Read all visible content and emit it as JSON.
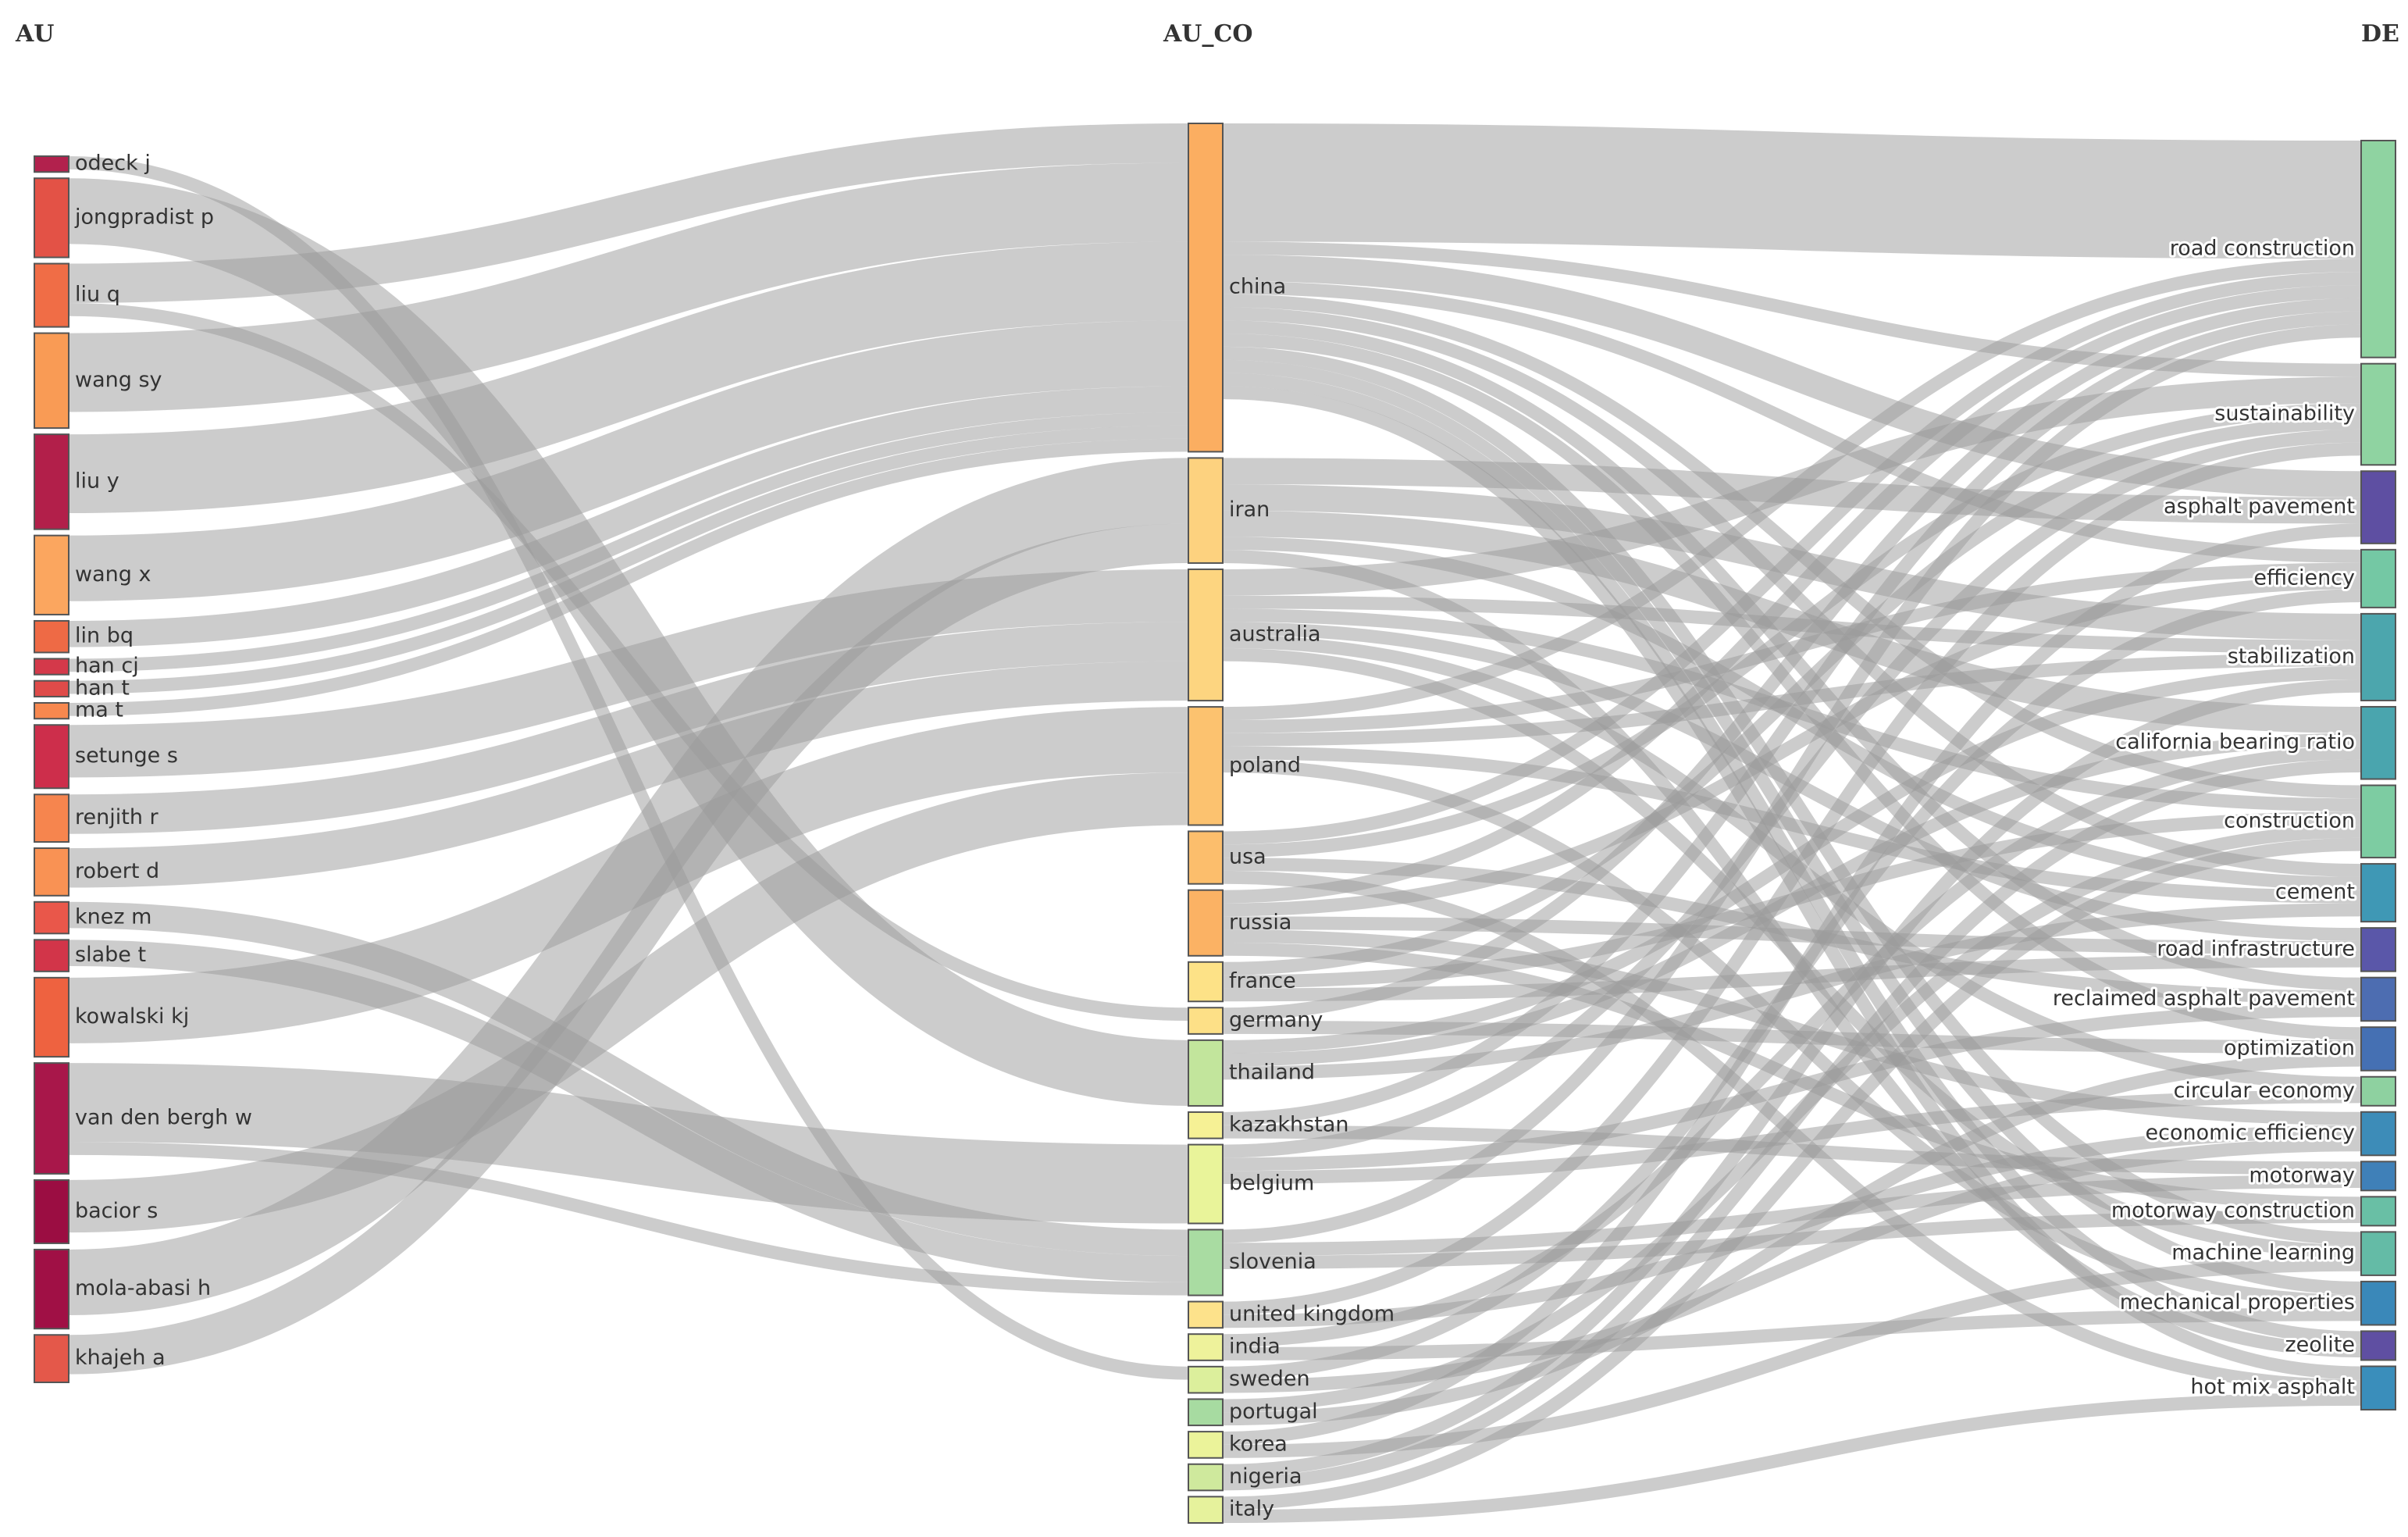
{
  "headers": {
    "au": "AU",
    "au_co": "AU_CO",
    "de": "DE"
  },
  "colors": {
    "link": "#9a9a9a"
  },
  "au_nodes": [
    {
      "id": "odeck j",
      "label": "odeck j",
      "color": "#b2214d"
    },
    {
      "id": "jongpradist p",
      "label": "jongpradist p",
      "color": "#e35246"
    },
    {
      "id": "liu q",
      "label": "liu q",
      "color": "#f06d46"
    },
    {
      "id": "wang sy",
      "label": "wang sy",
      "color": "#f99b55"
    },
    {
      "id": "liu y",
      "label": "liu y",
      "color": "#b21f4a"
    },
    {
      "id": "wang x",
      "label": "wang x",
      "color": "#fba65f"
    },
    {
      "id": "lin bq",
      "label": "lin bq",
      "color": "#ee6a45"
    },
    {
      "id": "han cj",
      "label": "han cj",
      "color": "#d4394a"
    },
    {
      "id": "han t",
      "label": "han t",
      "color": "#df4b49"
    },
    {
      "id": "ma t",
      "label": "ma t",
      "color": "#f7884f"
    },
    {
      "id": "setunge s",
      "label": "setunge s",
      "color": "#cd2e4b"
    },
    {
      "id": "renjith r",
      "label": "renjith r",
      "color": "#f6854e"
    },
    {
      "id": "robert d",
      "label": "robert d",
      "color": "#f99254"
    },
    {
      "id": "knez m",
      "label": "knez m",
      "color": "#e9574a"
    },
    {
      "id": "slabe t",
      "label": "slabe t",
      "color": "#d23549"
    },
    {
      "id": "kowalski kj",
      "label": "kowalski kj",
      "color": "#ee6240"
    },
    {
      "id": "van den bergh w",
      "label": "van den bergh w",
      "color": "#a8174a"
    },
    {
      "id": "bacior s",
      "label": "bacior s",
      "color": "#9b0d42"
    },
    {
      "id": "mola-abasi h",
      "label": "mola-abasi h",
      "color": "#a01045"
    },
    {
      "id": "khajeh a",
      "label": "khajeh a",
      "color": "#e4584a"
    }
  ],
  "country_nodes": [
    {
      "id": "china",
      "label": "china",
      "color": "#fbae61"
    },
    {
      "id": "iran",
      "label": "iran",
      "color": "#fdd27f"
    },
    {
      "id": "australia",
      "label": "australia",
      "color": "#fdd580"
    },
    {
      "id": "poland",
      "label": "poland",
      "color": "#fcc26f"
    },
    {
      "id": "usa",
      "label": "usa",
      "color": "#fcbe6c"
    },
    {
      "id": "russia",
      "label": "russia",
      "color": "#fbb264"
    },
    {
      "id": "france",
      "label": "france",
      "color": "#fde287"
    },
    {
      "id": "germany",
      "label": "germany",
      "color": "#fde087"
    },
    {
      "id": "thailand",
      "label": "thailand",
      "color": "#c2e59c"
    },
    {
      "id": "kazakhstan",
      "label": "kazakhstan",
      "color": "#f6f195"
    },
    {
      "id": "belgium",
      "label": "belgium",
      "color": "#e9f49a"
    },
    {
      "id": "slovenia",
      "label": "slovenia",
      "color": "#a9dca2"
    },
    {
      "id": "united kingdom",
      "label": "united kingdom",
      "color": "#fde28b"
    },
    {
      "id": "india",
      "label": "india",
      "color": "#eef29b"
    },
    {
      "id": "sweden",
      "label": "sweden",
      "color": "#dcef9c"
    },
    {
      "id": "portugal",
      "label": "portugal",
      "color": "#a7dba1"
    },
    {
      "id": "korea",
      "label": "korea",
      "color": "#ebf39a"
    },
    {
      "id": "nigeria",
      "label": "nigeria",
      "color": "#cfe99d"
    },
    {
      "id": "italy",
      "label": "italy",
      "color": "#e6f29c"
    }
  ],
  "de_nodes": [
    {
      "id": "road construction",
      "label": "road construction",
      "color": "#8fd3a1"
    },
    {
      "id": "sustainability",
      "label": "sustainability",
      "color": "#8fd3a1"
    },
    {
      "id": "asphalt pavement",
      "label": "asphalt pavement",
      "color": "#5e4fa2"
    },
    {
      "id": "efficiency",
      "label": "efficiency",
      "color": "#74c8a4"
    },
    {
      "id": "stabilization",
      "label": "stabilization",
      "color": "#4ca6ad"
    },
    {
      "id": "california bearing ratio",
      "label": "california bearing ratio",
      "color": "#4aa5ae"
    },
    {
      "id": "construction",
      "label": "construction",
      "color": "#7dcca2"
    },
    {
      "id": "cement",
      "label": "cement",
      "color": "#3f98b5"
    },
    {
      "id": "road infrastructure",
      "label": "road infrastructure",
      "color": "#5a57a9"
    },
    {
      "id": "reclaimed asphalt pavement",
      "label": "reclaimed asphalt pavement",
      "color": "#4d6db1"
    },
    {
      "id": "optimization",
      "label": "optimization",
      "color": "#4570b3"
    },
    {
      "id": "circular economy",
      "label": "circular economy",
      "color": "#8ed1a0"
    },
    {
      "id": "economic efficiency",
      "label": "economic efficiency",
      "color": "#3d8cb8"
    },
    {
      "id": "motorway",
      "label": "motorway",
      "color": "#3f80b8"
    },
    {
      "id": "motorway construction",
      "label": "motorway construction",
      "color": "#69bfa5"
    },
    {
      "id": "machine learning",
      "label": "machine learning",
      "color": "#64bba6"
    },
    {
      "id": "mechanical properties",
      "label": "mechanical properties",
      "color": "#3a88b9"
    },
    {
      "id": "zeolite",
      "label": "zeolite",
      "color": "#5f4fa2"
    },
    {
      "id": "hot mix asphalt",
      "label": "hot mix asphalt",
      "color": "#3a8ebb"
    }
  ],
  "au_links": [
    {
      "source": "odeck j",
      "target": "sweden",
      "value": 1
    },
    {
      "source": "jongpradist p",
      "target": "thailand",
      "value": 5
    },
    {
      "source": "liu q",
      "target": "china",
      "value": 3
    },
    {
      "source": "liu q",
      "target": "germany",
      "value": 1
    },
    {
      "source": "wang sy",
      "target": "china",
      "value": 6
    },
    {
      "source": "liu y",
      "target": "china",
      "value": 6
    },
    {
      "source": "wang x",
      "target": "china",
      "value": 5
    },
    {
      "source": "lin bq",
      "target": "china",
      "value": 2
    },
    {
      "source": "han cj",
      "target": "china",
      "value": 1
    },
    {
      "source": "han t",
      "target": "china",
      "value": 1
    },
    {
      "source": "ma t",
      "target": "china",
      "value": 1
    },
    {
      "source": "setunge s",
      "target": "australia",
      "value": 4
    },
    {
      "source": "renjith r",
      "target": "australia",
      "value": 3
    },
    {
      "source": "robert d",
      "target": "australia",
      "value": 3
    },
    {
      "source": "knez m",
      "target": "slovenia",
      "value": 2
    },
    {
      "source": "slabe t",
      "target": "slovenia",
      "value": 2
    },
    {
      "source": "kowalski kj",
      "target": "poland",
      "value": 5
    },
    {
      "source": "van den bergh w",
      "target": "belgium",
      "value": 6
    },
    {
      "source": "van den bergh w",
      "target": "slovenia",
      "value": 1
    },
    {
      "source": "bacior s",
      "target": "poland",
      "value": 4
    },
    {
      "source": "mola-abasi h",
      "target": "iran",
      "value": 5
    },
    {
      "source": "khajeh a",
      "target": "iran",
      "value": 3
    }
  ],
  "de_links": [
    {
      "source": "china",
      "target": "road construction",
      "value": 9
    },
    {
      "source": "china",
      "target": "sustainability",
      "value": 1
    },
    {
      "source": "china",
      "target": "asphalt pavement",
      "value": 2
    },
    {
      "source": "china",
      "target": "efficiency",
      "value": 1
    },
    {
      "source": "china",
      "target": "construction",
      "value": 1
    },
    {
      "source": "china",
      "target": "cement",
      "value": 1
    },
    {
      "source": "china",
      "target": "reclaimed asphalt pavement",
      "value": 1
    },
    {
      "source": "china",
      "target": "optimization",
      "value": 1
    },
    {
      "source": "china",
      "target": "machine learning",
      "value": 1
    },
    {
      "source": "china",
      "target": "mechanical properties",
      "value": 1
    },
    {
      "source": "china",
      "target": "zeolite",
      "value": 1
    },
    {
      "source": "china",
      "target": "hot mix asphalt",
      "value": 1
    },
    {
      "source": "iran",
      "target": "asphalt pavement",
      "value": 2
    },
    {
      "source": "iran",
      "target": "stabilization",
      "value": 2
    },
    {
      "source": "iran",
      "target": "california bearing ratio",
      "value": 2
    },
    {
      "source": "iran",
      "target": "cement",
      "value": 1
    },
    {
      "source": "iran",
      "target": "zeolite",
      "value": 1
    },
    {
      "source": "australia",
      "target": "sustainability",
      "value": 2
    },
    {
      "source": "australia",
      "target": "stabilization",
      "value": 1
    },
    {
      "source": "australia",
      "target": "construction",
      "value": 1
    },
    {
      "source": "australia",
      "target": "road infrastructure",
      "value": 1
    },
    {
      "source": "australia",
      "target": "circular economy",
      "value": 1
    },
    {
      "source": "australia",
      "target": "machine learning",
      "value": 1
    },
    {
      "source": "poland",
      "target": "road construction",
      "value": 1
    },
    {
      "source": "poland",
      "target": "efficiency",
      "value": 1
    },
    {
      "source": "poland",
      "target": "stabilization",
      "value": 1
    },
    {
      "source": "poland",
      "target": "cement",
      "value": 1
    },
    {
      "source": "poland",
      "target": "mechanical properties",
      "value": 1
    },
    {
      "source": "usa",
      "target": "road construction",
      "value": 1
    },
    {
      "source": "usa",
      "target": "sustainability",
      "value": 1
    },
    {
      "source": "usa",
      "target": "reclaimed asphalt pavement",
      "value": 1
    },
    {
      "source": "usa",
      "target": "hot mix asphalt",
      "value": 1
    },
    {
      "source": "russia",
      "target": "road construction",
      "value": 1
    },
    {
      "source": "russia",
      "target": "efficiency",
      "value": 1
    },
    {
      "source": "russia",
      "target": "road infrastructure",
      "value": 1
    },
    {
      "source": "russia",
      "target": "economic efficiency",
      "value": 1
    },
    {
      "source": "russia",
      "target": "motorway construction",
      "value": 1
    },
    {
      "source": "france",
      "target": "sustainability",
      "value": 1
    },
    {
      "source": "france",
      "target": "construction",
      "value": 1
    },
    {
      "source": "france",
      "target": "road infrastructure",
      "value": 1
    },
    {
      "source": "germany",
      "target": "road construction",
      "value": 1
    },
    {
      "source": "germany",
      "target": "optimization",
      "value": 1
    },
    {
      "source": "thailand",
      "target": "stabilization",
      "value": 1
    },
    {
      "source": "thailand",
      "target": "california bearing ratio",
      "value": 1
    },
    {
      "source": "thailand",
      "target": "cement",
      "value": 1
    },
    {
      "source": "kazakhstan",
      "target": "road construction",
      "value": 1
    },
    {
      "source": "kazakhstan",
      "target": "motorway",
      "value": 1
    },
    {
      "source": "belgium",
      "target": "sustainability",
      "value": 1
    },
    {
      "source": "belgium",
      "target": "reclaimed asphalt pavement",
      "value": 1
    },
    {
      "source": "belgium",
      "target": "circular economy",
      "value": 1
    },
    {
      "source": "slovenia",
      "target": "road construction",
      "value": 1
    },
    {
      "source": "slovenia",
      "target": "motorway",
      "value": 1
    },
    {
      "source": "slovenia",
      "target": "motorway construction",
      "value": 1
    },
    {
      "source": "united kingdom",
      "target": "sustainability",
      "value": 1
    },
    {
      "source": "united kingdom",
      "target": "economic efficiency",
      "value": 1
    },
    {
      "source": "india",
      "target": "california bearing ratio",
      "value": 1
    },
    {
      "source": "india",
      "target": "mechanical properties",
      "value": 1
    },
    {
      "source": "sweden",
      "target": "economic efficiency",
      "value": 1
    },
    {
      "source": "sweden",
      "target": "efficiency",
      "value": 1
    },
    {
      "source": "portugal",
      "target": "construction",
      "value": 1
    },
    {
      "source": "portugal",
      "target": "optimization",
      "value": 1
    },
    {
      "source": "korea",
      "target": "asphalt pavement",
      "value": 1
    },
    {
      "source": "korea",
      "target": "machine learning",
      "value": 1
    },
    {
      "source": "nigeria",
      "target": "stabilization",
      "value": 1
    },
    {
      "source": "nigeria",
      "target": "california bearing ratio",
      "value": 1
    },
    {
      "source": "italy",
      "target": "construction",
      "value": 1
    },
    {
      "source": "italy",
      "target": "hot mix asphalt",
      "value": 1
    }
  ]
}
